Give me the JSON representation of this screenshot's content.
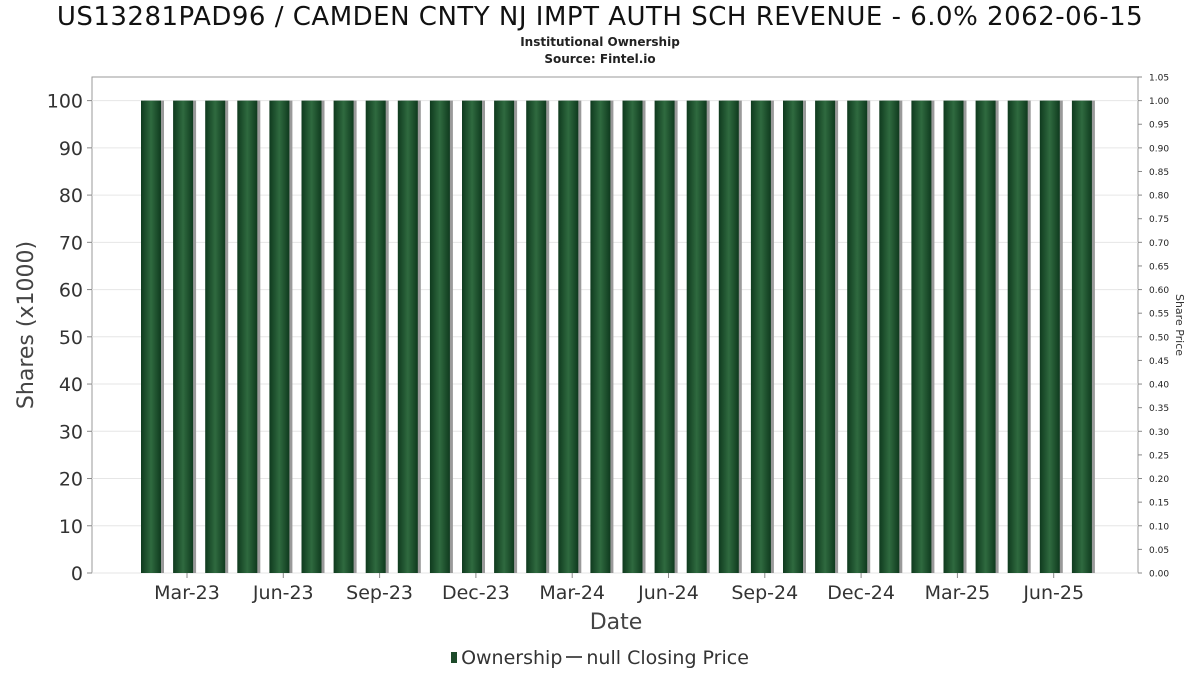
{
  "header": {
    "title": "US13281PAD96 / CAMDEN CNTY NJ IMPT AUTH SCH REVENUE - 6.0% 2062-06-15",
    "subtitle_1": "Institutional Ownership",
    "subtitle_2": "Source: Fintel.io"
  },
  "legend": {
    "ownership_label": "Ownership",
    "price_label": "null Closing Price"
  },
  "colors": {
    "bar_dark": "#0f3a1e",
    "bar_mid": "#2f6a3f",
    "bar_shadow": "#9a9a9a",
    "grid": "#e6e6e6",
    "axis": "#666666"
  },
  "chart_data": {
    "type": "bar",
    "xlabel": "Date",
    "ylabel": "Shares (x1000)",
    "y2label": "Share Price",
    "ylim": [
      0,
      105
    ],
    "y2lim": [
      0,
      1.05
    ],
    "yticks": [
      0,
      10,
      20,
      30,
      40,
      50,
      60,
      70,
      80,
      90,
      100
    ],
    "y2ticks": [
      "0.00",
      "0.05",
      "0.10",
      "0.15",
      "0.20",
      "0.25",
      "0.30",
      "0.35",
      "0.40",
      "0.45",
      "0.50",
      "0.55",
      "0.60",
      "0.65",
      "0.70",
      "0.75",
      "0.80",
      "0.85",
      "0.90",
      "0.95",
      "1.00",
      "1.05"
    ],
    "xticks": [
      "Mar-23",
      "Jun-23",
      "Sep-23",
      "Dec-23",
      "Mar-24",
      "Jun-24",
      "Sep-24",
      "Dec-24",
      "Mar-25",
      "Jun-25"
    ],
    "grid": true,
    "legend_position": "bottom",
    "series": [
      {
        "name": "Ownership",
        "values": [
          100,
          100,
          100,
          100,
          100,
          100,
          100,
          100,
          100,
          100,
          100,
          100,
          100,
          100,
          100,
          100,
          100,
          100,
          100,
          100,
          100,
          100,
          100,
          100,
          100,
          100,
          100,
          100,
          100,
          100
        ]
      },
      {
        "name": "null Closing Price",
        "values": []
      }
    ]
  }
}
